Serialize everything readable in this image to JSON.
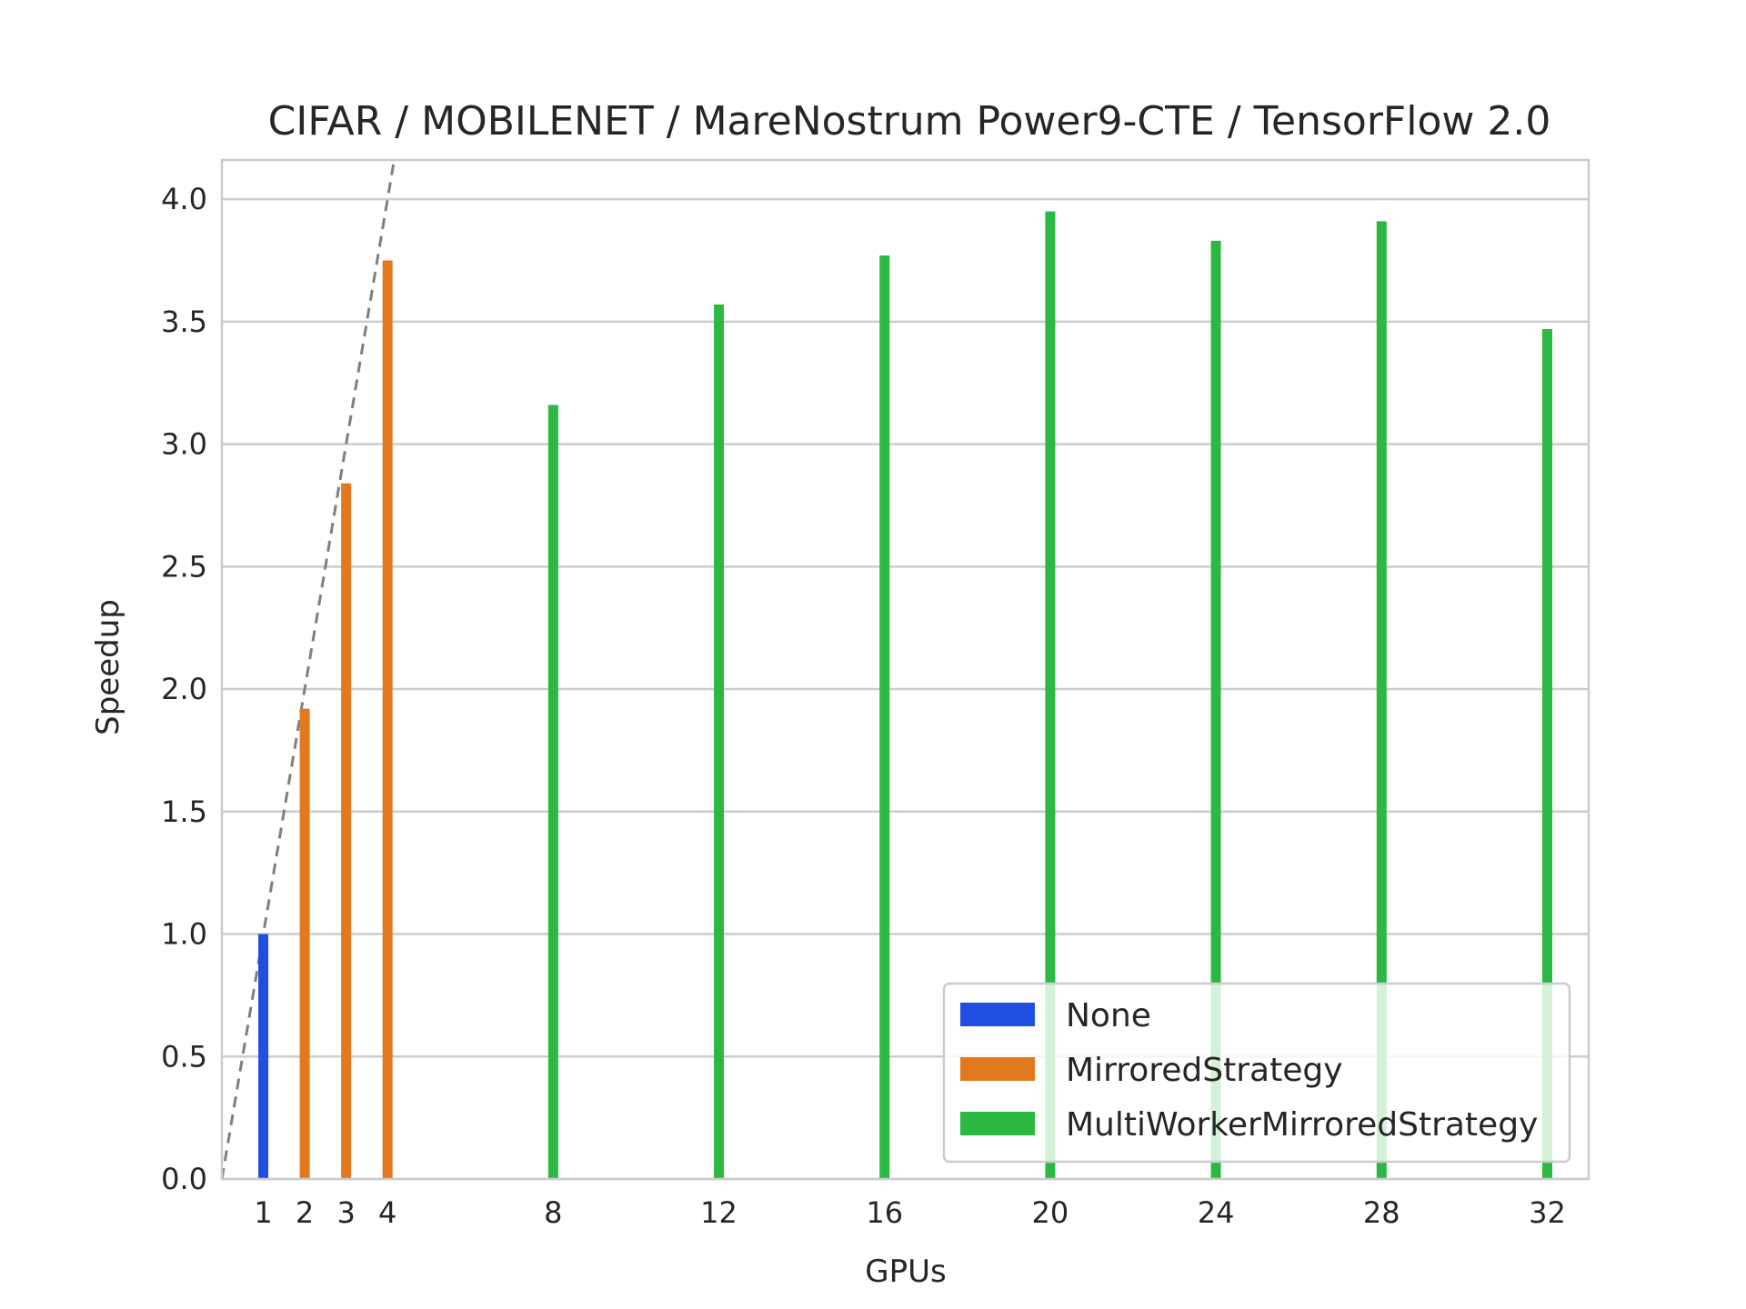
{
  "chart_data": {
    "type": "bar",
    "title": "CIFAR / MOBILENET / MareNostrum Power9-CTE / TensorFlow 2.0",
    "xlabel": "GPUs",
    "ylabel": "Speedup",
    "ylim": [
      0,
      4.16
    ],
    "xlim": [
      0,
      33
    ],
    "yticks": [
      "0.0",
      "0.5",
      "1.0",
      "1.5",
      "2.0",
      "2.5",
      "3.0",
      "3.5",
      "4.0"
    ],
    "xticks": [
      "1",
      "2",
      "3",
      "4",
      "8",
      "12",
      "16",
      "20",
      "24",
      "28",
      "32"
    ],
    "grid": true,
    "legend_position": "lower-right",
    "ideal_line": {
      "style": "dashed",
      "color": "#7f7f7f",
      "description": "linear speedup"
    },
    "series": [
      {
        "name": "None",
        "color": "#1f4ee0",
        "x": [
          1
        ],
        "values": [
          1.0
        ]
      },
      {
        "name": "MirroredStrategy",
        "color": "#e2791e",
        "x": [
          2,
          3,
          4
        ],
        "values": [
          1.92,
          2.84,
          3.75
        ]
      },
      {
        "name": "MultiWorkerMirroredStrategy",
        "color": "#2bb943",
        "x": [
          8,
          12,
          16,
          20,
          24,
          28,
          32
        ],
        "values": [
          3.16,
          3.57,
          3.77,
          3.95,
          3.83,
          3.91,
          3.47
        ]
      }
    ]
  }
}
